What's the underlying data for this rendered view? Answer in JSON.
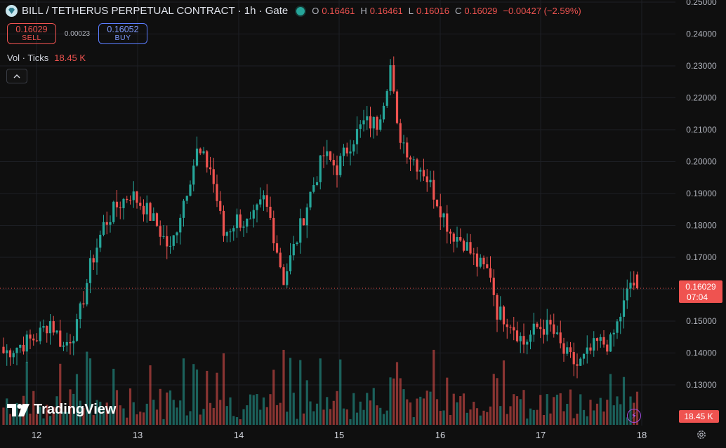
{
  "legend": {
    "symbol": "BILL / TETHERUS PERPETUAL CONTRACT · 1h · Gate",
    "open_label": "O",
    "open": "0.16461",
    "high_label": "H",
    "high": "0.16461",
    "low_label": "L",
    "low": "0.16016",
    "close_label": "C",
    "close": "0.16029",
    "change": "−0.00427 (−2.59%)"
  },
  "trade": {
    "sell_price": "0.16029",
    "sell_label": "SELL",
    "spread": "0.00023",
    "buy_price": "0.16052",
    "buy_label": "BUY"
  },
  "volume_legend": {
    "label": "Vol · Ticks",
    "value": "18.45 K"
  },
  "price_axis": {
    "ticks": [
      "0.25000",
      "0.24000",
      "0.23000",
      "0.22000",
      "0.21000",
      "0.20000",
      "0.19000",
      "0.18000",
      "0.17000",
      "0.16000",
      "0.15000",
      "0.14000",
      "0.13000"
    ],
    "current_price": "0.16029",
    "countdown": "07:04",
    "volume_label": "18.45 K"
  },
  "time_axis": {
    "labels": [
      "12",
      "13",
      "14",
      "15",
      "16",
      "17",
      "18"
    ]
  },
  "watermark": "TradingView",
  "colors": {
    "up": "#26a69a",
    "down": "#ef5350",
    "background": "#0f0f0f",
    "buy_accent": "#5b7dff",
    "bolt": "#b35cff"
  },
  "icons": {
    "exchange_logo": "diamond-logo-icon",
    "collapse": "chevron-up-icon",
    "quick_trade": "lightning-icon",
    "settings": "gear-icon"
  },
  "chart_data": {
    "type": "candlestick",
    "interval": "1h",
    "y_range": [
      0.12,
      0.25
    ],
    "grid": true,
    "price_control_points": [
      [
        0,
        0.14
      ],
      [
        10,
        0.145
      ],
      [
        14,
        0.15
      ],
      [
        18,
        0.142
      ],
      [
        22,
        0.148
      ],
      [
        26,
        0.167
      ],
      [
        30,
        0.18
      ],
      [
        34,
        0.186
      ],
      [
        38,
        0.19
      ],
      [
        42,
        0.186
      ],
      [
        46,
        0.18
      ],
      [
        50,
        0.172
      ],
      [
        54,
        0.188
      ],
      [
        58,
        0.203
      ],
      [
        62,
        0.198
      ],
      [
        64,
        0.188
      ],
      [
        66,
        0.177
      ],
      [
        70,
        0.182
      ],
      [
        74,
        0.18
      ],
      [
        78,
        0.188
      ],
      [
        80,
        0.182
      ],
      [
        84,
        0.163
      ],
      [
        88,
        0.176
      ],
      [
        92,
        0.19
      ],
      [
        96,
        0.202
      ],
      [
        100,
        0.198
      ],
      [
        104,
        0.206
      ],
      [
        108,
        0.212
      ],
      [
        112,
        0.212
      ],
      [
        114,
        0.22
      ],
      [
        116,
        0.23
      ],
      [
        118,
        0.21
      ],
      [
        122,
        0.202
      ],
      [
        126,
        0.197
      ],
      [
        130,
        0.188
      ],
      [
        134,
        0.178
      ],
      [
        138,
        0.175
      ],
      [
        142,
        0.168
      ],
      [
        146,
        0.165
      ],
      [
        148,
        0.153
      ],
      [
        152,
        0.15
      ],
      [
        156,
        0.143
      ],
      [
        160,
        0.148
      ],
      [
        164,
        0.148
      ],
      [
        168,
        0.14
      ],
      [
        170,
        0.138
      ],
      [
        172,
        0.136
      ],
      [
        174,
        0.138
      ],
      [
        178,
        0.143
      ],
      [
        182,
        0.143
      ],
      [
        186,
        0.155
      ],
      [
        188,
        0.162
      ],
      [
        190,
        0.161
      ]
    ]
  }
}
